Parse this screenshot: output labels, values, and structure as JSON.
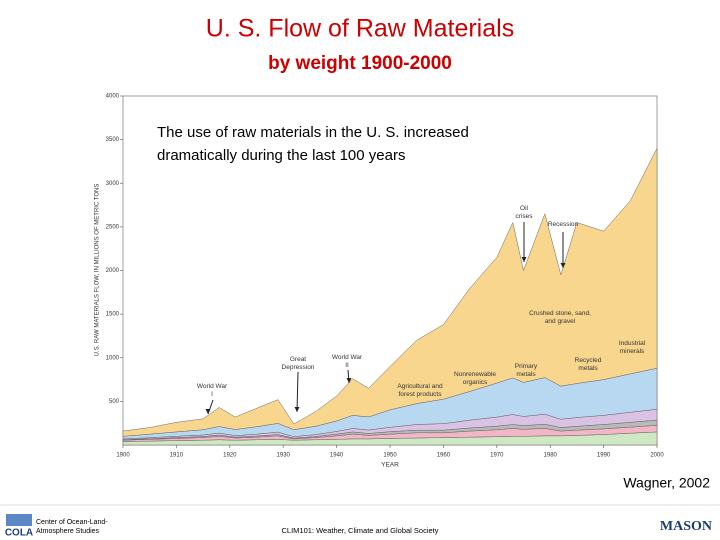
{
  "chart_data": {
    "type": "stacked_area",
    "title": "U. S. Flow of Raw Materials",
    "subtitle": "by weight 1900-2000",
    "caption": [
      "The use of raw materials in the U. S. increased",
      "dramatically during the last 100 years"
    ],
    "ylabel": "U.S. RAW MATERIALS FLOW, IN MILLIONS OF METRIC TONS",
    "xlabel": "YEAR",
    "x": [
      1900,
      1905,
      1910,
      1915,
      1918,
      1921,
      1925,
      1929,
      1932,
      1936,
      1940,
      1943,
      1946,
      1950,
      1955,
      1960,
      1965,
      1970,
      1973,
      1975,
      1979,
      1982,
      1985,
      1990,
      1995,
      2000
    ],
    "series": [
      {
        "name": "Agricultural and forest products",
        "color": "#cfe8c4",
        "values": [
          40,
          45,
          50,
          55,
          60,
          55,
          60,
          65,
          55,
          60,
          65,
          70,
          70,
          75,
          80,
          85,
          90,
          95,
          100,
          100,
          105,
          105,
          110,
          120,
          135,
          150
        ]
      },
      {
        "name": "Primary metals",
        "color": "#f3b6c6",
        "values": [
          15,
          20,
          25,
          30,
          40,
          25,
          30,
          40,
          15,
          25,
          40,
          55,
          40,
          50,
          60,
          55,
          70,
          80,
          90,
          80,
          85,
          55,
          60,
          65,
          70,
          75
        ]
      },
      {
        "name": "Recycled metals",
        "color": "#b9b9b9",
        "values": [
          5,
          7,
          10,
          12,
          15,
          10,
          12,
          15,
          8,
          12,
          20,
          25,
          22,
          28,
          30,
          30,
          35,
          40,
          45,
          42,
          48,
          40,
          45,
          50,
          55,
          60
        ]
      },
      {
        "name": "Industrial minerals",
        "color": "#d9c2e4",
        "values": [
          10,
          12,
          15,
          18,
          22,
          18,
          22,
          28,
          18,
          22,
          30,
          40,
          40,
          50,
          65,
          75,
          90,
          105,
          115,
          105,
          115,
          95,
          100,
          105,
          115,
          125
        ]
      },
      {
        "name": "Nonrenewable organics",
        "color": "#b8d8f2",
        "values": [
          30,
          40,
          50,
          60,
          75,
          70,
          85,
          100,
          80,
          95,
          120,
          150,
          150,
          200,
          240,
          280,
          330,
          390,
          420,
          390,
          420,
          380,
          390,
          410,
          440,
          470
        ]
      },
      {
        "name": "Crushed stone, sand, and gravel",
        "color": "#f8d68e",
        "values": [
          60,
          76,
          110,
          125,
          218,
          142,
          211,
          272,
          64,
          166,
          285,
          420,
          328,
          497,
          725,
          855,
          1185,
          1440,
          1780,
          1283,
          1877,
          1275,
          1845,
          1700,
          1985,
          2520
        ]
      }
    ],
    "annotations": [
      "World War I",
      "Great Depression",
      "World War II",
      "Oil crises",
      "Recession"
    ],
    "xlim": [
      1900,
      2000
    ],
    "xticks": [
      1900,
      1910,
      1920,
      1930,
      1940,
      1950,
      1960,
      1970,
      1980,
      1990,
      2000
    ],
    "ylim": [
      0,
      4000
    ],
    "yticks": [
      500,
      1000,
      1500,
      2000,
      2500,
      3000,
      3500,
      4000
    ],
    "source": "Wagner, 2002",
    "footer": {
      "org": [
        "Center of Ocean-Land-",
        "Atmosphere Studies"
      ],
      "logo": "COLA",
      "course": "CLIM101: Weather, Climate and Global Society",
      "university": "MASON"
    }
  }
}
